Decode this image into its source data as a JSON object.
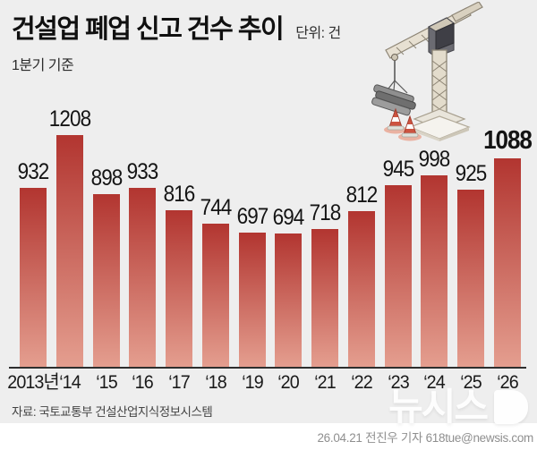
{
  "header": {
    "title": "건설업 폐업 신고 건수 추이",
    "unit_label": "단위: 건",
    "subtitle": "1분기 기준"
  },
  "chart_data": {
    "type": "bar",
    "categories": [
      "2013년",
      "‘14",
      "‘15",
      "‘16",
      "‘17",
      "‘18",
      "‘19",
      "‘20",
      "‘21",
      "‘22",
      "‘23",
      "‘24",
      "‘25",
      "‘26"
    ],
    "values": [
      932,
      1208,
      898,
      933,
      816,
      744,
      697,
      694,
      718,
      812,
      945,
      998,
      925,
      1088
    ],
    "title": "건설업 폐업 신고 건수 추이",
    "xlabel": "",
    "ylabel": "",
    "ylim": [
      0,
      1260
    ],
    "grid": false,
    "legend": "none",
    "value_labels_shown": true,
    "highlight_last": true,
    "bar_color_top": "#b23530",
    "bar_color_bottom": "#e49e8f",
    "axis_line_color": "#2e2e2e",
    "background_color": "#eeeeee"
  },
  "footer": {
    "source": "자료: 국토교통부 건설산업지식정보시스템",
    "credit": "26.04.21 전진우 기자 618tue@newsis.com"
  },
  "watermark": {
    "text": "뉴시스"
  },
  "illustration": {
    "name": "tower-crane-with-traffic-cones"
  }
}
